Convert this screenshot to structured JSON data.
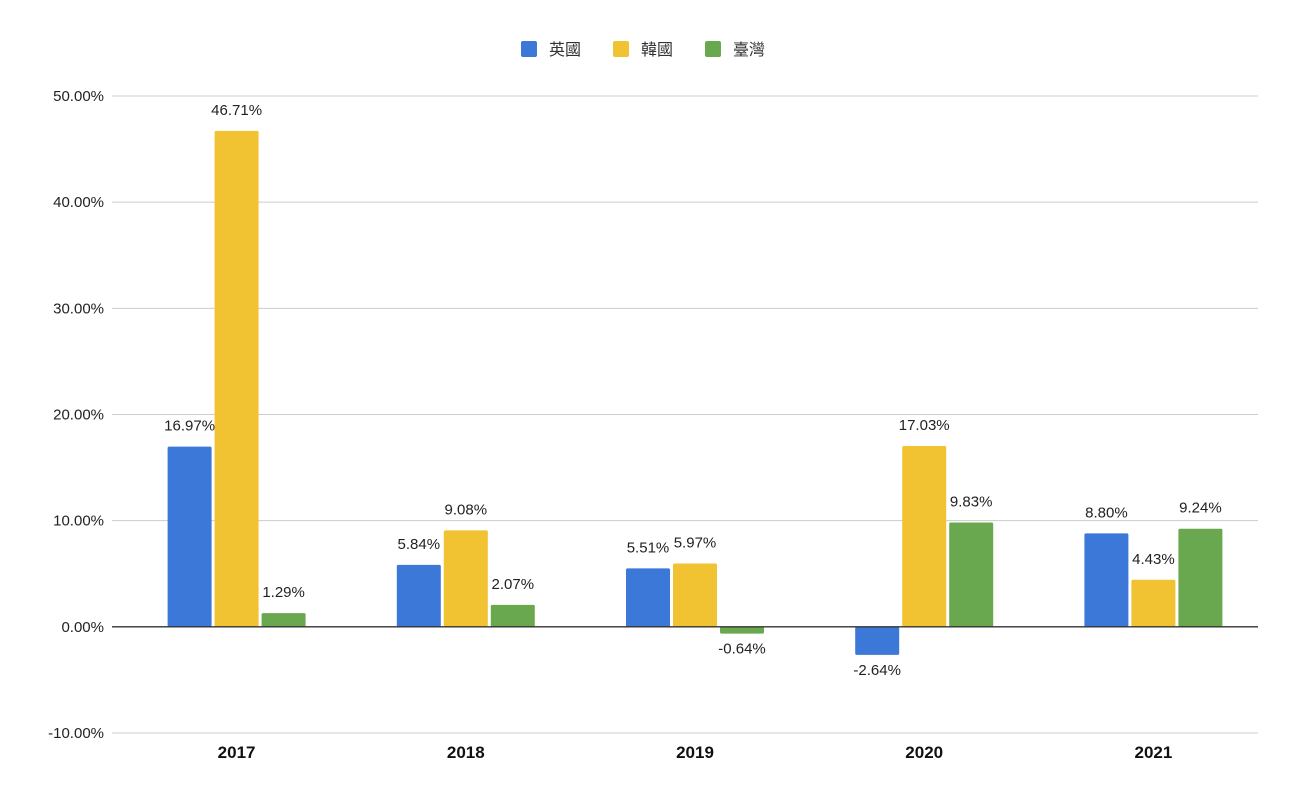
{
  "chart_data": {
    "type": "bar",
    "title": "",
    "xlabel": "",
    "ylabel": "",
    "categories": [
      "2017",
      "2018",
      "2019",
      "2020",
      "2021"
    ],
    "series": [
      {
        "name": "英國",
        "color": "#3c78d8",
        "values": [
          16.97,
          5.84,
          5.51,
          -2.64,
          8.8
        ],
        "labels": [
          "16.97%",
          "5.84%",
          "5.51%",
          "-2.64%",
          "8.80%"
        ]
      },
      {
        "name": "韓國",
        "color": "#f1c232",
        "values": [
          46.71,
          9.08,
          5.97,
          17.03,
          4.43
        ],
        "labels": [
          "46.71%",
          "9.08%",
          "5.97%",
          "17.03%",
          "4.43%"
        ]
      },
      {
        "name": "臺灣",
        "color": "#6aa84f",
        "values": [
          1.29,
          2.07,
          -0.64,
          9.83,
          9.24
        ],
        "labels": [
          "1.29%",
          "2.07%",
          "-0.64%",
          "9.83%",
          "9.24%"
        ]
      }
    ],
    "ylim": [
      -10,
      50
    ],
    "yticks": [
      -10,
      0,
      10,
      20,
      30,
      40,
      50
    ],
    "ytick_labels": [
      "-10.00%",
      "0.00%",
      "10.00%",
      "20.00%",
      "30.00%",
      "40.00%",
      "50.00%"
    ],
    "grid": true,
    "legend": "top-center"
  }
}
